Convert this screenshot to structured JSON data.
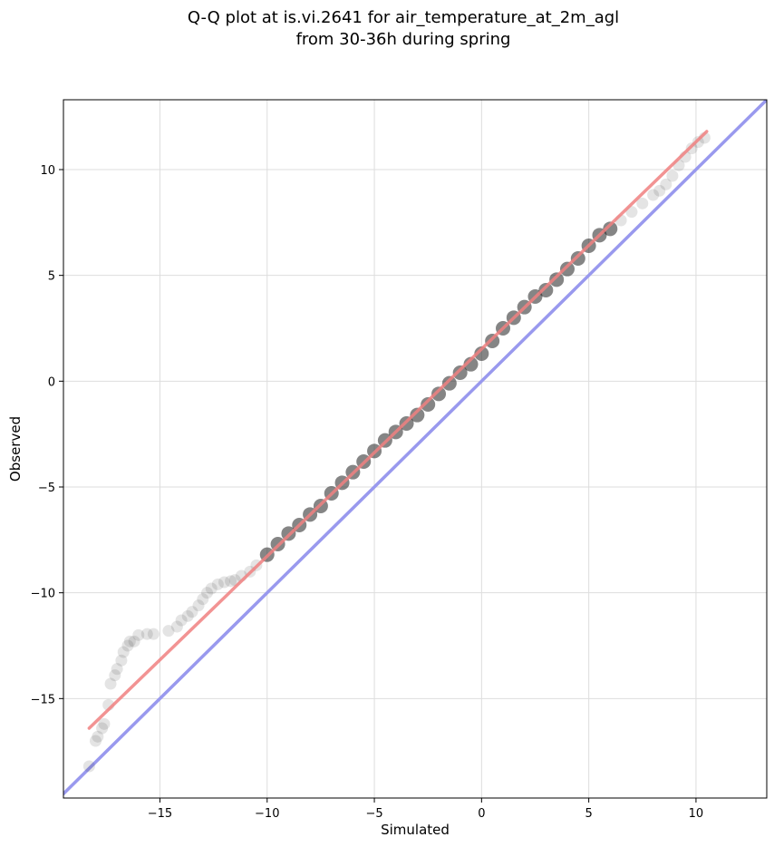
{
  "chart_data": {
    "type": "scatter",
    "title_lines": [
      "Q-Q plot at is.vi.2641 for air_temperature_at_2m_agl",
      "from 30-36h during spring"
    ],
    "xlabel": "Simulated",
    "ylabel": "Observed",
    "xlim": [
      -19.5,
      13.3
    ],
    "ylim": [
      -19.7,
      13.3
    ],
    "xticks": [
      -15,
      -10,
      -5,
      0,
      5,
      10
    ],
    "yticks": [
      -15,
      -10,
      -5,
      0,
      5,
      10
    ],
    "xtick_labels": [
      "−15",
      "−10",
      "−5",
      "0",
      "5",
      "10"
    ],
    "ytick_labels": [
      "−15",
      "−10",
      "−5",
      "0",
      "5",
      "10"
    ],
    "grid": true,
    "colors": {
      "points": "#202020",
      "fit_line": "#f08080",
      "identity_line": "#9999ee",
      "grid": "#dddddd"
    },
    "quantile_points": {
      "x": [
        -18.3,
        -18.0,
        -17.9,
        -17.7,
        -17.6,
        -17.4,
        -17.3,
        -17.1,
        -17.0,
        -16.8,
        -16.7,
        -16.5,
        -16.4,
        -16.2,
        -16.0,
        -15.6,
        -15.3,
        -14.6,
        -14.2,
        -14.0,
        -13.7,
        -13.5,
        -13.2,
        -13.0,
        -12.8,
        -12.6,
        -12.3,
        -12.0,
        -11.7,
        -11.5,
        -11.2,
        -10.8,
        -10.5,
        -10.0,
        -9.5,
        -9.0,
        -8.5,
        -8.0,
        -7.5,
        -7.0,
        -6.5,
        -6.0,
        -5.5,
        -5.0,
        -4.5,
        -4.0,
        -3.5,
        -3.0,
        -2.5,
        -2.0,
        -1.5,
        -1.0,
        -0.5,
        0.0,
        0.5,
        1.0,
        1.5,
        2.0,
        2.5,
        3.0,
        3.5,
        4.0,
        4.5,
        5.0,
        5.5,
        6.0,
        6.5,
        7.0,
        7.5,
        8.0,
        8.3,
        8.6,
        8.9,
        9.2,
        9.5,
        9.8,
        10.1,
        10.4
      ],
      "y": [
        -18.2,
        -17.0,
        -16.8,
        -16.4,
        -16.2,
        -15.3,
        -14.3,
        -13.9,
        -13.6,
        -13.2,
        -12.8,
        -12.5,
        -12.3,
        -12.3,
        -12.0,
        -11.95,
        -11.95,
        -11.8,
        -11.6,
        -11.3,
        -11.1,
        -10.9,
        -10.6,
        -10.3,
        -10.0,
        -9.8,
        -9.6,
        -9.5,
        -9.45,
        -9.4,
        -9.2,
        -9.0,
        -8.7,
        -8.2,
        -7.7,
        -7.2,
        -6.8,
        -6.3,
        -5.9,
        -5.3,
        -4.8,
        -4.3,
        -3.8,
        -3.3,
        -2.8,
        -2.4,
        -2.0,
        -1.6,
        -1.1,
        -0.6,
        -0.1,
        0.4,
        0.8,
        1.3,
        1.9,
        2.5,
        3.0,
        3.5,
        4.0,
        4.3,
        4.8,
        5.3,
        5.8,
        6.4,
        6.9,
        7.2,
        7.6,
        8.0,
        8.4,
        8.8,
        9.0,
        9.3,
        9.7,
        10.2,
        10.6,
        11.0,
        11.3,
        11.5
      ]
    },
    "fit_line": {
      "x": [
        -18.3,
        10.5
      ],
      "y": [
        -16.4,
        11.8
      ]
    },
    "identity_line": {
      "x": [
        -19.5,
        13.3
      ],
      "y": [
        -19.5,
        13.3
      ]
    }
  }
}
